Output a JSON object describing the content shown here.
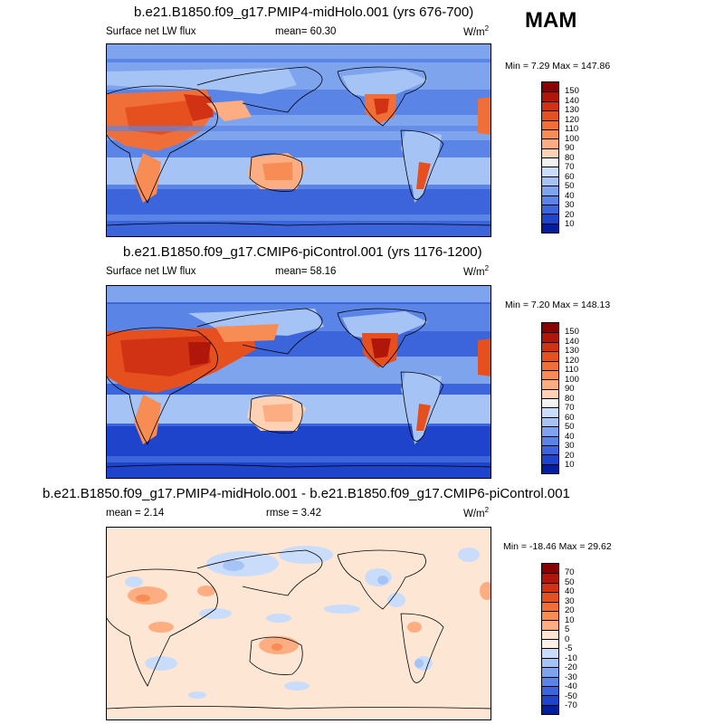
{
  "season": "MAM",
  "panels": [
    {
      "title": "b.e21.B1850.f09_g17.PMIP4-midHolo.001 (yrs 676-700)",
      "left_label": "Surface net LW flux",
      "mid_label": "mean=  60.30",
      "units_base": "W/m",
      "units_exp": "2",
      "minmax": "Min =   7.29 Max = 147.86",
      "palette": "absolute"
    },
    {
      "title": "b.e21.B1850.f09_g17.CMIP6-piControl.001 (yrs 1176-1200)",
      "left_label": "Surface net LW flux",
      "mid_label": "mean=  58.16",
      "units_base": "W/m",
      "units_exp": "2",
      "minmax": "Min =   7.20 Max = 148.13",
      "palette": "absolute"
    },
    {
      "title": "b.e21.B1850.f09_g17.PMIP4-midHolo.001 - b.e21.B1850.f09_g17.CMIP6-piControl.001",
      "left_label": "mean =   2.14",
      "mid_label": "rmse =   3.42",
      "units_base": "W/m",
      "units_exp": "2",
      "minmax": "Min = -18.46 Max =  29.62",
      "palette": "difference"
    }
  ],
  "colorbars": {
    "absolute": {
      "labels": [
        "150",
        "140",
        "130",
        "120",
        "110",
        "100",
        "90",
        "80",
        "70",
        "60",
        "50",
        "40",
        "30",
        "20",
        "10"
      ],
      "colors": [
        "#8b0000",
        "#b0170a",
        "#d23214",
        "#e6501e",
        "#f06e37",
        "#f78d55",
        "#fcae82",
        "#fdd2b4",
        "#f2f2f2",
        "#c9dcfa",
        "#a6c3f5",
        "#7ea4ee",
        "#5a84e6",
        "#3c64db",
        "#1e44cc",
        "#001e9e"
      ]
    },
    "difference": {
      "labels": [
        "70",
        "50",
        "40",
        "30",
        "20",
        "10",
        "5",
        "0",
        "-5",
        "-10",
        "-20",
        "-30",
        "-40",
        "-50",
        "-70"
      ],
      "colors": [
        "#8b0000",
        "#b0170a",
        "#d23214",
        "#e6501e",
        "#f06e37",
        "#f78d55",
        "#fcae82",
        "#fde6d4",
        "#fef0e6",
        "#c9dcfa",
        "#a6c3f5",
        "#7ea4ee",
        "#5a84e6",
        "#3c64db",
        "#1e44cc",
        "#001e9e"
      ]
    }
  }
}
